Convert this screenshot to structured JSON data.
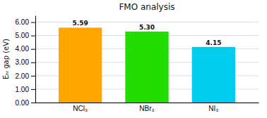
{
  "chart_data": {
    "type": "bar",
    "title": "FMO analysis",
    "ylabel": "Eₕₗ gap (eV)",
    "categories": [
      "NCl₃",
      "NBr₃",
      "NI₃"
    ],
    "values": [
      5.59,
      5.3,
      4.15
    ],
    "value_labels": [
      "5.59",
      "5.30",
      "4.15"
    ],
    "colors": [
      "#FFA500",
      "#22DD00",
      "#00CCEE"
    ],
    "ylim": [
      0,
      6.5
    ],
    "yticks": [
      {
        "value": 0.0,
        "label": "0.00"
      },
      {
        "value": 1.0,
        "label": "1.00"
      },
      {
        "value": 2.0,
        "label": "2.00"
      },
      {
        "value": 3.0,
        "label": "3.00"
      },
      {
        "value": 4.0,
        "label": "4.00"
      },
      {
        "value": 5.0,
        "label": "5.00"
      },
      {
        "value": 6.0,
        "label": "6.00"
      }
    ],
    "grid": true,
    "data_labels": true
  }
}
